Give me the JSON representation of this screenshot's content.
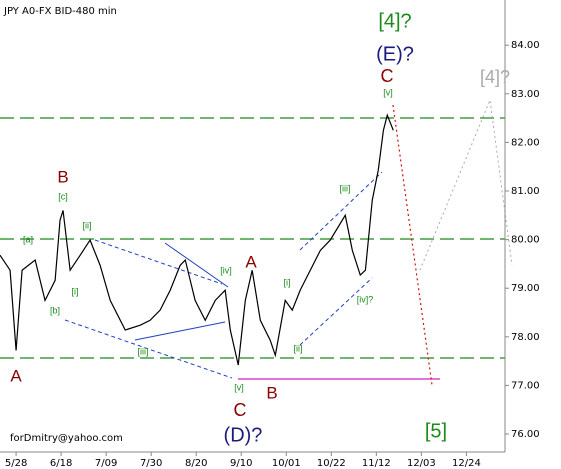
{
  "chart_data": {
    "type": "line",
    "title": "JPY A0-FX BID-480 min",
    "footer": "forDmitry@yahoo.com",
    "xlim": [
      -7.5,
      228
    ],
    "ylim": [
      75.63,
      84.93
    ],
    "xticks": [
      {
        "value": 0,
        "label": "5/28"
      },
      {
        "value": 21,
        "label": "6/18"
      },
      {
        "value": 42,
        "label": "7/09"
      },
      {
        "value": 63,
        "label": "7/30"
      },
      {
        "value": 84,
        "label": "8/20"
      },
      {
        "value": 105,
        "label": "9/10"
      },
      {
        "value": 126,
        "label": "10/01"
      },
      {
        "value": 147,
        "label": "10/22"
      },
      {
        "value": 168,
        "label": "11/12"
      },
      {
        "value": 189,
        "label": "12/03"
      },
      {
        "value": 210,
        "label": "12/24"
      }
    ],
    "yticks": [
      {
        "value": 76,
        "label": "76.00"
      },
      {
        "value": 77,
        "label": "77.00"
      },
      {
        "value": 78,
        "label": "78.00"
      },
      {
        "value": 79,
        "label": "79.00"
      },
      {
        "value": 80,
        "label": "80.00"
      },
      {
        "value": 81,
        "label": "81.00"
      },
      {
        "value": 82,
        "label": "82.00"
      },
      {
        "value": 83,
        "label": "83.00"
      },
      {
        "value": 84,
        "label": "84.00"
      }
    ],
    "series": [
      {
        "name": "JPY A0-FX",
        "color": "#000000",
        "x": [
          -7.5,
          -2.8,
          0,
          2.8,
          8.9,
          13.5,
          18.2,
          20.5,
          21.9,
          25.2,
          29.9,
          34.5,
          39.2,
          43.9,
          50.9,
          57.9,
          62.5,
          67.2,
          71.9,
          76.5,
          78.9,
          83.5,
          88.2,
          92.9,
          97.5,
          99.9,
          103.6,
          106.9,
          110.1,
          113.9,
          118.5,
          120.9,
          125.5,
          128.8,
          132.5,
          137.2,
          141.9,
          146.5,
          153.5,
          156.8,
          160.5,
          162.9,
          166.1,
          168.9,
          171.3,
          173.1,
          175.9
        ],
        "values": [
          79.68,
          79.37,
          77.72,
          79.37,
          79.58,
          78.75,
          79.16,
          80.4,
          80.6,
          79.37,
          79.68,
          79.99,
          79.47,
          78.75,
          78.14,
          78.24,
          78.34,
          78.55,
          78.96,
          79.47,
          79.58,
          78.75,
          78.34,
          78.75,
          78.96,
          78.14,
          77.42,
          78.75,
          79.37,
          78.34,
          77.93,
          77.62,
          78.75,
          78.55,
          78.96,
          79.37,
          79.78,
          79.99,
          80.5,
          79.78,
          79.27,
          79.37,
          80.81,
          81.43,
          82.25,
          82.56,
          82.25
        ]
      }
    ],
    "annotations": [
      "[4]?",
      "(E)?",
      "C",
      "[v]",
      "[4]?",
      "B",
      "[c]",
      "[a]",
      "[ii]",
      "[i]",
      "[b]",
      "[iii]",
      "[iv]",
      "A",
      "[i]",
      "[ii]",
      "[iii]",
      "[iv]?",
      "[v]",
      "C",
      "(D)?",
      "B",
      "A",
      "[5]"
    ]
  }
}
